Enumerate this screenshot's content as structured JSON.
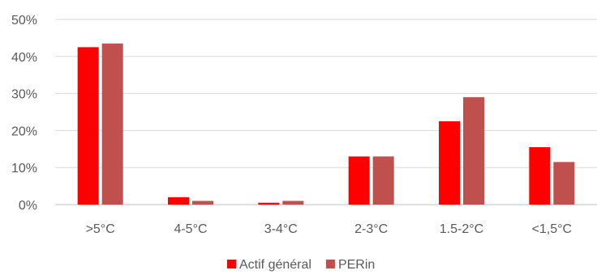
{
  "chart_data": {
    "type": "bar",
    "categories": [
      ">5°C",
      "4-5°C",
      "3-4°C",
      "2-3°C",
      "1.5-2°C",
      "<1,5°C"
    ],
    "series": [
      {
        "name": "Actif général",
        "values": [
          42.5,
          2.0,
          0.5,
          13.0,
          22.5,
          15.5
        ],
        "color": "#ff0000"
      },
      {
        "name": "PERin",
        "values": [
          43.5,
          1.0,
          1.0,
          13.0,
          29.0,
          11.5
        ],
        "color": "#c0504d"
      }
    ],
    "yticks": [
      "0%",
      "10%",
      "20%",
      "30%",
      "40%",
      "50%"
    ],
    "ylim": [
      0,
      50
    ],
    "grid": true,
    "legend_position": "bottom",
    "colors": {
      "grid": "#d9d9d9",
      "axis": "#bfbfbf",
      "text": "#595959"
    }
  }
}
